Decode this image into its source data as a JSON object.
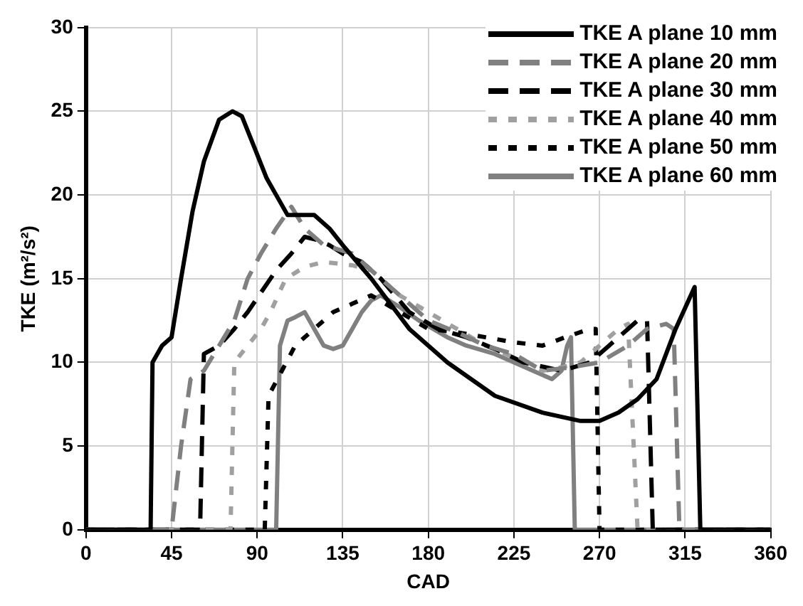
{
  "chart_data": {
    "type": "line",
    "xlabel": "CAD",
    "ylabel": "TKE (m²/s²)",
    "xlim": [
      0,
      360
    ],
    "ylim": [
      0,
      30
    ],
    "xticks": [
      0,
      45,
      90,
      135,
      180,
      225,
      270,
      315,
      360
    ],
    "yticks": [
      0,
      5,
      10,
      15,
      20,
      25,
      30
    ],
    "grid": true,
    "legend": "top right",
    "marker": "none",
    "series": [
      {
        "name": "TKE A plane 10 mm",
        "color": "#000000",
        "line_style": "solid",
        "x": [
          0,
          34,
          35,
          40,
          45,
          50,
          56,
          62,
          70,
          77,
          82,
          88,
          95,
          100,
          106,
          112,
          120,
          128,
          135,
          150,
          170,
          190,
          215,
          240,
          260,
          270,
          280,
          290,
          300,
          310,
          320,
          323,
          360
        ],
        "values": [
          0,
          0,
          10,
          11,
          11.5,
          15,
          19,
          22,
          24.5,
          25,
          24.7,
          23,
          21,
          20,
          18.8,
          18.8,
          18.8,
          18,
          17,
          15,
          12,
          10,
          8,
          7,
          6.5,
          6.5,
          7,
          7.8,
          9,
          12,
          14.5,
          0,
          0
        ]
      },
      {
        "name": "TKE A plane 20 mm",
        "color": "#808080",
        "line_style": "dashed",
        "x": [
          0,
          45,
          50,
          55,
          62,
          70,
          78,
          85,
          92,
          100,
          108,
          115,
          125,
          140,
          155,
          170,
          180,
          195,
          210,
          225,
          240,
          255,
          270,
          285,
          295,
          305,
          309,
          312,
          360
        ],
        "values": [
          0,
          0,
          5,
          9,
          9.5,
          11,
          12.5,
          15,
          16.5,
          18,
          19.3,
          18,
          17,
          16.5,
          15,
          13.5,
          12.5,
          11.8,
          11,
          10.5,
          9.5,
          9.7,
          10,
          11,
          12,
          12.3,
          12,
          0,
          0
        ]
      },
      {
        "name": "TKE A plane 30 mm",
        "color": "#000000",
        "line_style": "dashed",
        "x": [
          0,
          60,
          62,
          70,
          78,
          85,
          91,
          100,
          108,
          115,
          122,
          128,
          135,
          145,
          155,
          170,
          185,
          200,
          215,
          230,
          250,
          265,
          275,
          285,
          290,
          295,
          298,
          360
        ],
        "values": [
          0,
          0,
          10.5,
          11,
          12,
          13,
          14,
          15.5,
          16.5,
          17.5,
          17.3,
          17,
          16.5,
          16,
          15,
          13,
          12,
          11.5,
          10.8,
          10,
          9.5,
          10,
          11,
          12,
          12.5,
          12.5,
          0,
          0
        ]
      },
      {
        "name": "TKE A plane 40 mm",
        "color": "#a0a0a0",
        "line_style": "dotted",
        "x": [
          0,
          76,
          78,
          85,
          92,
          97,
          105,
          115,
          125,
          140,
          150,
          165,
          180,
          195,
          210,
          225,
          240,
          250,
          260,
          270,
          280,
          285,
          290,
          360
        ],
        "values": [
          0,
          0,
          10,
          11,
          12,
          13,
          15,
          15.7,
          16,
          15.8,
          15.5,
          14,
          13,
          12,
          11,
          10.3,
          9.5,
          9.7,
          10,
          11,
          12,
          12.3,
          0,
          0
        ]
      },
      {
        "name": "TKE A plane 50 mm",
        "color": "#000000",
        "line_style": "dotted",
        "x": [
          0,
          94,
          96,
          103,
          110,
          120,
          130,
          140,
          150,
          165,
          180,
          195,
          210,
          225,
          240,
          252,
          265,
          268,
          270,
          360
        ],
        "values": [
          0,
          0,
          8,
          9.5,
          11,
          12,
          13,
          13.5,
          14,
          13,
          12,
          11.8,
          11.5,
          11.2,
          11,
          11.5,
          12,
          12,
          0,
          0
        ]
      },
      {
        "name": "TKE A plane 60 mm",
        "color": "#808080",
        "line_style": "solid",
        "x": [
          0,
          100,
          102,
          106,
          110,
          115,
          120,
          125,
          130,
          135,
          140,
          145,
          150,
          155,
          165,
          175,
          190,
          200,
          215,
          225,
          235,
          245,
          250,
          253,
          255,
          257,
          360
        ],
        "values": [
          0,
          0,
          11,
          12.5,
          12.7,
          13,
          12,
          11,
          10.8,
          11,
          12,
          13,
          13.7,
          14,
          13.3,
          12.5,
          11.5,
          11,
          10.5,
          10,
          9.5,
          9,
          9.5,
          11,
          11.5,
          0,
          0
        ]
      }
    ]
  }
}
